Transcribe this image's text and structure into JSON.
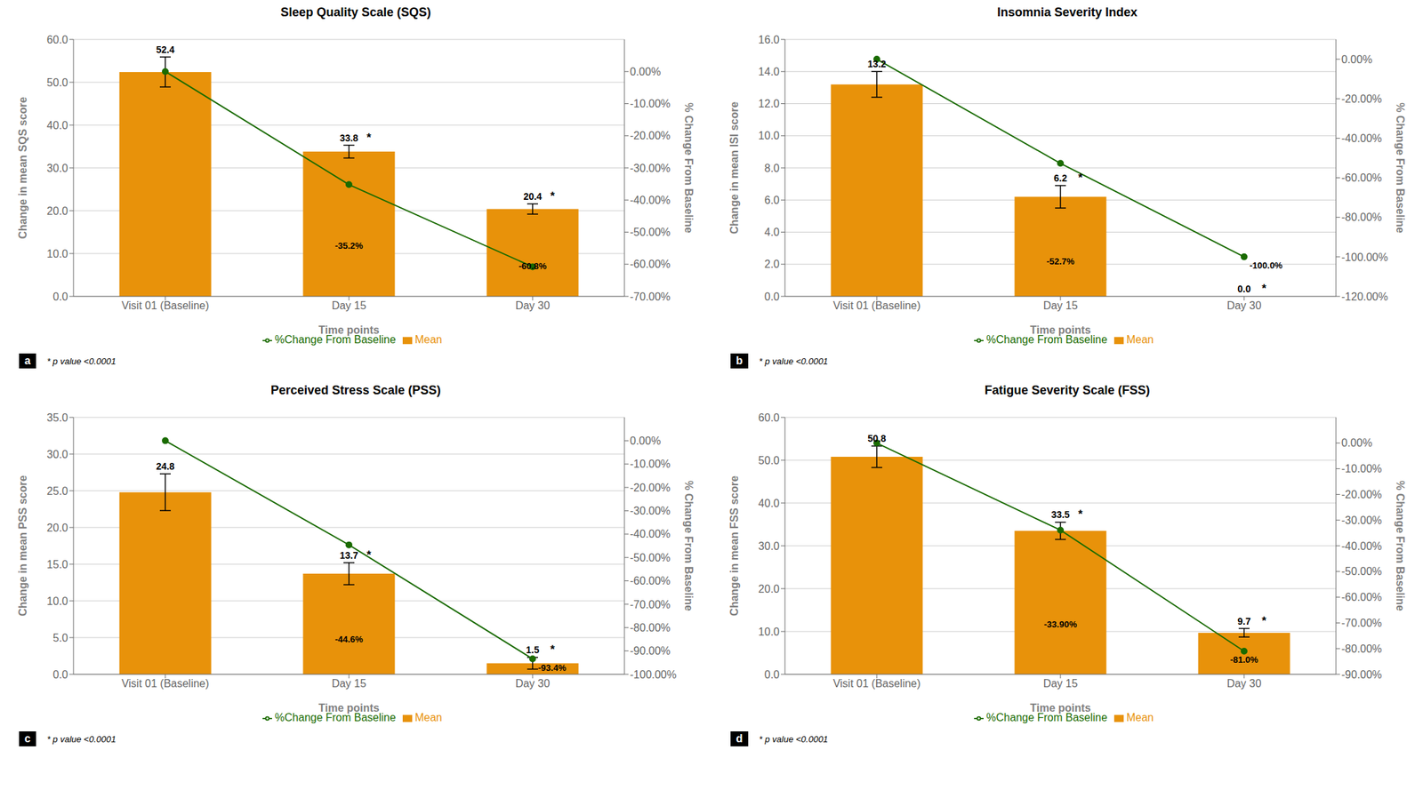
{
  "chart_data": [
    {
      "type": "bar",
      "title": "Sleep Quality Scale (SQS)",
      "panel_label": "a",
      "x_label": "Time points",
      "y_label": "Change in mean SQS score",
      "y2_label": "% Change From Baseline",
      "categories": [
        "Visit 01 (Baseline)",
        "Day 15",
        "Day 30"
      ],
      "series": [
        {
          "name": "Mean",
          "type": "bar",
          "color": "#E8920A",
          "values": [
            52.4,
            33.8,
            20.4
          ],
          "errors": [
            3.5,
            1.5,
            1.2
          ],
          "value_labels": [
            "52.4",
            "33.8",
            "20.4"
          ],
          "significance": [
            null,
            "*",
            "*"
          ]
        },
        {
          "name": "%Change From Baseline",
          "type": "line",
          "axis": "y2",
          "color": "#1a6b00",
          "marker": "o",
          "values": [
            0.0,
            -35.2,
            -60.8
          ],
          "value_labels": [
            null,
            "-35.2%",
            "-60.8%"
          ]
        }
      ],
      "ylim": [
        0,
        60.0
      ],
      "yticks": [
        {
          "value": 0,
          "label": "0.0"
        },
        {
          "value": 10,
          "label": "10.0"
        },
        {
          "value": 20,
          "label": "20.0"
        },
        {
          "value": 30,
          "label": "30.0"
        },
        {
          "value": 40,
          "label": "40.0"
        },
        {
          "value": 50,
          "label": "50.0"
        },
        {
          "value": 60,
          "label": "60.0"
        }
      ],
      "y2lim": [
        -70,
        10
      ],
      "y2ticks": [
        {
          "value": 0,
          "label": "0.00%"
        },
        {
          "value": -10,
          "label": "-10.00%"
        },
        {
          "value": -20,
          "label": "-20.00%"
        },
        {
          "value": -30,
          "label": "-30.00%"
        },
        {
          "value": -40,
          "label": "-40.00%"
        },
        {
          "value": -50,
          "label": "-50.00%"
        },
        {
          "value": -60,
          "label": "-60.00%"
        },
        {
          "value": -70,
          "label": "-70.00%"
        }
      ],
      "grid": true,
      "legend": "bottom",
      "data_labels": true,
      "annotations": [
        "* p value <0.0001"
      ]
    },
    {
      "type": "bar",
      "title": "Insomnia Severity Index",
      "panel_label": "b",
      "x_label": "Time points",
      "y_label": "Change in mean ISI score",
      "y2_label": "% Change From Baseline",
      "categories": [
        "Visit 01 (Baseline)",
        "Day 15",
        "Day 30"
      ],
      "series": [
        {
          "name": "Mean",
          "type": "bar",
          "color": "#E8920A",
          "values": [
            13.2,
            6.2,
            0.0
          ],
          "errors": [
            0.8,
            0.7,
            0.0
          ],
          "value_labels": [
            "13.2",
            "6.2",
            "0.0"
          ],
          "significance": [
            null,
            "*",
            "*"
          ]
        },
        {
          "name": "%Change From Baseline",
          "type": "line",
          "axis": "y2",
          "color": "#1a6b00",
          "marker": "o",
          "values": [
            0.0,
            -52.7,
            -100.0
          ],
          "value_labels": [
            null,
            "-52.7%",
            "-100.0%"
          ]
        }
      ],
      "ylim": [
        0,
        16.0
      ],
      "yticks": [
        {
          "value": 0,
          "label": "0.0"
        },
        {
          "value": 2,
          "label": "2.0"
        },
        {
          "value": 4,
          "label": "4.0"
        },
        {
          "value": 6,
          "label": "6.0"
        },
        {
          "value": 8,
          "label": "8.0"
        },
        {
          "value": 10,
          "label": "10.0"
        },
        {
          "value": 12,
          "label": "12.0"
        },
        {
          "value": 14,
          "label": "14.0"
        },
        {
          "value": 16,
          "label": "16.0"
        }
      ],
      "y2lim": [
        -120,
        10
      ],
      "y2ticks": [
        {
          "value": 0,
          "label": "0.00%"
        },
        {
          "value": -20,
          "label": "-20.00%"
        },
        {
          "value": -40,
          "label": "-40.00%"
        },
        {
          "value": -60,
          "label": "-60.00%"
        },
        {
          "value": -80,
          "label": "-80.00%"
        },
        {
          "value": -100,
          "label": "-100.00%"
        },
        {
          "value": -120,
          "label": "-120.00%"
        }
      ],
      "grid": true,
      "legend": "bottom",
      "data_labels": true,
      "annotations": [
        "* p value <0.0001"
      ]
    },
    {
      "type": "bar",
      "title": "Perceived Stress Scale (PSS)",
      "panel_label": "c",
      "x_label": "Time points",
      "y_label": "Change in mean PSS score",
      "y2_label": "% Change From Baseline",
      "categories": [
        "Visit 01 (Baseline)",
        "Day 15",
        "Day 30"
      ],
      "series": [
        {
          "name": "Mean",
          "type": "bar",
          "color": "#E8920A",
          "values": [
            24.8,
            13.7,
            1.5
          ],
          "errors": [
            2.5,
            1.5,
            0.8
          ],
          "value_labels": [
            "24.8",
            "13.7",
            "1.5"
          ],
          "significance": [
            null,
            "*",
            "*"
          ]
        },
        {
          "name": "%Change From Baseline",
          "type": "line",
          "axis": "y2",
          "color": "#1a6b00",
          "marker": "o",
          "values": [
            0.0,
            -44.6,
            -93.4
          ],
          "value_labels": [
            null,
            "-44.6%",
            "-93.4%"
          ]
        }
      ],
      "ylim": [
        0,
        35.0
      ],
      "yticks": [
        {
          "value": 0,
          "label": "0.0"
        },
        {
          "value": 5,
          "label": "5.0"
        },
        {
          "value": 10,
          "label": "10.0"
        },
        {
          "value": 15,
          "label": "15.0"
        },
        {
          "value": 20,
          "label": "20.0"
        },
        {
          "value": 25,
          "label": "25.0"
        },
        {
          "value": 30,
          "label": "30.0"
        },
        {
          "value": 35,
          "label": "35.0"
        }
      ],
      "y2lim": [
        -100,
        10
      ],
      "y2ticks": [
        {
          "value": 0,
          "label": "0.00%"
        },
        {
          "value": -10,
          "label": "-10.00%"
        },
        {
          "value": -20,
          "label": "-20.00%"
        },
        {
          "value": -30,
          "label": "-30.00%"
        },
        {
          "value": -40,
          "label": "-40.00%"
        },
        {
          "value": -50,
          "label": "-50.00%"
        },
        {
          "value": -60,
          "label": "-60.00%"
        },
        {
          "value": -70,
          "label": "-70.00%"
        },
        {
          "value": -80,
          "label": "-80.00%"
        },
        {
          "value": -90,
          "label": "-90.00%"
        },
        {
          "value": -100,
          "label": "-100.00%"
        }
      ],
      "grid": true,
      "legend": "bottom",
      "data_labels": true,
      "annotations": [
        "* p value <0.0001"
      ]
    },
    {
      "type": "bar",
      "title": "Fatigue Severity Scale (FSS)",
      "panel_label": "d",
      "x_label": "Time points",
      "y_label": "Change in mean FSS score",
      "y2_label": "% Change From Baseline",
      "categories": [
        "Visit 01 (Baseline)",
        "Day 15",
        "Day 30"
      ],
      "series": [
        {
          "name": "Mean",
          "type": "bar",
          "color": "#E8920A",
          "values": [
            50.8,
            33.5,
            9.7
          ],
          "errors": [
            2.5,
            2.0,
            1.0
          ],
          "value_labels": [
            "50.8",
            "33.5",
            "9.7"
          ],
          "significance": [
            null,
            "*",
            "*"
          ]
        },
        {
          "name": "%Change From Baseline",
          "type": "line",
          "axis": "y2",
          "color": "#1a6b00",
          "marker": "o",
          "values": [
            0.0,
            -33.9,
            -81.0
          ],
          "value_labels": [
            null,
            "-33.90%",
            "-81.0%"
          ]
        }
      ],
      "ylim": [
        0,
        60.0
      ],
      "yticks": [
        {
          "value": 0,
          "label": "0.0"
        },
        {
          "value": 10,
          "label": "10.0"
        },
        {
          "value": 20,
          "label": "20.0"
        },
        {
          "value": 30,
          "label": "30.0"
        },
        {
          "value": 40,
          "label": "40.0"
        },
        {
          "value": 50,
          "label": "50.0"
        },
        {
          "value": 60,
          "label": "60.0"
        }
      ],
      "y2lim": [
        -90,
        10
      ],
      "y2ticks": [
        {
          "value": 0,
          "label": "0.00%"
        },
        {
          "value": -10,
          "label": "-10.00%"
        },
        {
          "value": -20,
          "label": "-20.00%"
        },
        {
          "value": -30,
          "label": "-30.00%"
        },
        {
          "value": -40,
          "label": "-40.00%"
        },
        {
          "value": -50,
          "label": "-50.00%"
        },
        {
          "value": -60,
          "label": "-60.00%"
        },
        {
          "value": -70,
          "label": "-70.00%"
        },
        {
          "value": -80,
          "label": "-80.00%"
        },
        {
          "value": -90,
          "label": "-90.00%"
        }
      ],
      "grid": true,
      "legend": "bottom",
      "data_labels": true,
      "annotations": [
        "* p value <0.0001"
      ]
    }
  ]
}
